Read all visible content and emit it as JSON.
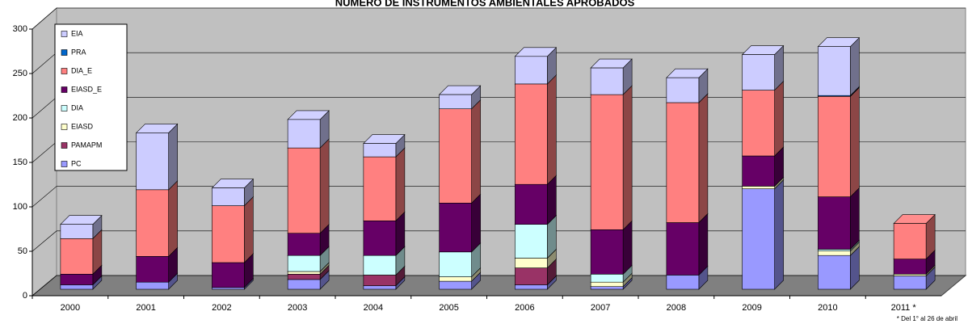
{
  "chart_data": {
    "type": "bar3d_stacked",
    "title": "NUMERO DE INSTRUMENTOS AMBIENTALES APROBADOS",
    "footnote": "* Del 1° al 26 de abril",
    "categories": [
      "2000",
      "2001",
      "2002",
      "2003",
      "2004",
      "2005",
      "2006",
      "2007",
      "2008",
      "2009",
      "2010",
      "2011 *"
    ],
    "series": [
      {
        "name": "PC",
        "color": "#9999ff",
        "values": [
          5,
          8,
          2,
          11,
          4,
          9,
          5,
          3,
          16,
          113,
          38,
          15
        ]
      },
      {
        "name": "PAMAPM",
        "color": "#993366",
        "values": [
          0,
          0,
          0,
          6,
          12,
          0,
          19,
          0,
          0,
          0,
          0,
          0
        ]
      },
      {
        "name": "EIASD",
        "color": "#ffffcc",
        "values": [
          0,
          0,
          0,
          3,
          0,
          5,
          11,
          5,
          0,
          3,
          5,
          2
        ]
      },
      {
        "name": "DIA",
        "color": "#ccffff",
        "values": [
          0,
          0,
          0,
          18,
          22,
          28,
          38,
          9,
          0,
          0,
          2,
          0
        ]
      },
      {
        "name": "EIASD_E",
        "color": "#660066",
        "values": [
          12,
          29,
          28,
          25,
          39,
          55,
          45,
          50,
          59,
          34,
          59,
          17
        ]
      },
      {
        "name": "DIA_E",
        "color": "#ff8080",
        "values": [
          40,
          75,
          64,
          96,
          72,
          106,
          113,
          152,
          135,
          74,
          113,
          40
        ]
      },
      {
        "name": "PRA",
        "color": "#0066cc",
        "values": [
          0,
          0,
          0,
          0,
          0,
          0,
          0,
          0,
          0,
          0,
          1,
          0
        ]
      },
      {
        "name": "EIA",
        "color": "#ccccff",
        "values": [
          16,
          64,
          20,
          32,
          15,
          16,
          31,
          30,
          28,
          40,
          55,
          0
        ]
      }
    ],
    "ylim": [
      0,
      300
    ],
    "yticks": [
      0,
      50,
      100,
      150,
      200,
      250,
      300
    ],
    "grid": true
  }
}
